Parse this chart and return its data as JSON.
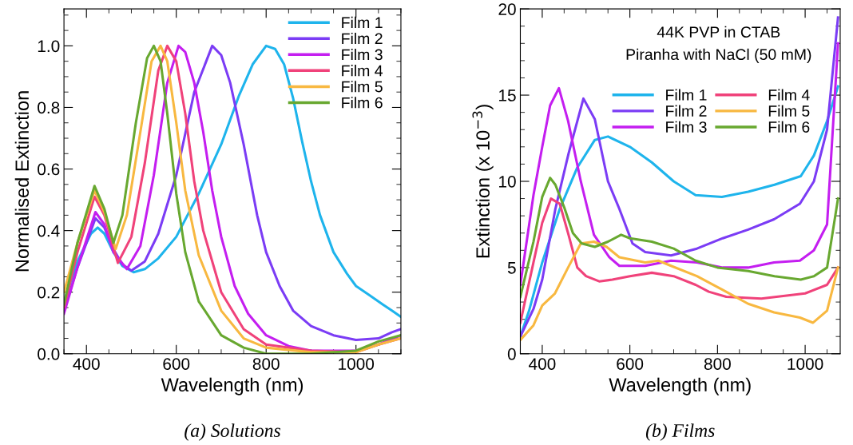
{
  "chart_data": [
    {
      "type": "line",
      "subtitle": "(a) Solutions",
      "xlabel": "Wavelength (nm)",
      "ylabel": "Normalised Extinction",
      "xlim": [
        350,
        1100
      ],
      "xticks": [
        400,
        600,
        800,
        1000
      ],
      "ylim": [
        0,
        1.12
      ],
      "yticks": [
        {
          "value": 0,
          "label": "0.0"
        },
        0.2,
        0.4,
        0.6,
        0.8,
        {
          "value": 1,
          "label": "1.0"
        }
      ],
      "grid": false,
      "legend": "top right",
      "marker": "none",
      "line_style": "solid",
      "series": [
        {
          "name": "Film 1",
          "color": "#1eb4ec",
          "x": [
            350,
            380,
            410,
            425,
            440,
            460,
            480,
            505,
            530,
            560,
            600,
            650,
            700,
            740,
            770,
            800,
            820,
            840,
            860,
            880,
            900,
            920,
            950,
            980,
            1000,
            1030,
            1060,
            1080,
            1100
          ],
          "values": [
            0.17,
            0.3,
            0.39,
            0.41,
            0.39,
            0.33,
            0.285,
            0.265,
            0.275,
            0.31,
            0.38,
            0.52,
            0.68,
            0.84,
            0.94,
            1.0,
            0.99,
            0.94,
            0.83,
            0.69,
            0.56,
            0.45,
            0.33,
            0.26,
            0.22,
            0.19,
            0.16,
            0.14,
            0.12
          ]
        },
        {
          "name": "Film 2",
          "color": "#7b3cf5",
          "x": [
            350,
            380,
            420,
            440,
            460,
            480,
            500,
            530,
            560,
            600,
            640,
            680,
            700,
            720,
            750,
            780,
            800,
            830,
            860,
            900,
            950,
            1000,
            1050,
            1080,
            1100
          ],
          "values": [
            0.14,
            0.28,
            0.44,
            0.41,
            0.34,
            0.29,
            0.27,
            0.3,
            0.39,
            0.58,
            0.85,
            1.0,
            0.97,
            0.88,
            0.68,
            0.45,
            0.33,
            0.22,
            0.14,
            0.09,
            0.06,
            0.045,
            0.05,
            0.07,
            0.08
          ]
        },
        {
          "name": "Film 3",
          "color": "#c41ef0",
          "x": [
            350,
            380,
            420,
            440,
            460,
            490,
            520,
            550,
            580,
            605,
            620,
            640,
            660,
            680,
            700,
            730,
            760,
            800,
            850,
            900,
            950,
            1000,
            1050,
            1100
          ],
          "values": [
            0.13,
            0.28,
            0.46,
            0.42,
            0.33,
            0.275,
            0.35,
            0.58,
            0.88,
            1.0,
            0.98,
            0.88,
            0.72,
            0.53,
            0.38,
            0.22,
            0.13,
            0.06,
            0.025,
            0.01,
            0.01,
            0.01,
            0.03,
            0.06
          ]
        },
        {
          "name": "Film 4",
          "color": "#f0427a",
          "x": [
            350,
            380,
            418,
            440,
            470,
            500,
            530,
            560,
            580,
            600,
            620,
            640,
            660,
            700,
            750,
            800,
            900,
            1000,
            1050,
            1100
          ],
          "values": [
            0.15,
            0.33,
            0.51,
            0.45,
            0.295,
            0.38,
            0.62,
            0.92,
            1.0,
            0.95,
            0.78,
            0.56,
            0.4,
            0.2,
            0.08,
            0.03,
            0.01,
            0.005,
            0.03,
            0.05
          ]
        },
        {
          "name": "Film 5",
          "color": "#f8b840",
          "x": [
            350,
            380,
            418,
            440,
            465,
            490,
            520,
            545,
            565,
            580,
            600,
            620,
            650,
            700,
            750,
            800,
            900,
            1000,
            1050,
            1100
          ],
          "values": [
            0.2,
            0.36,
            0.53,
            0.46,
            0.34,
            0.45,
            0.72,
            0.95,
            1.0,
            0.95,
            0.75,
            0.53,
            0.32,
            0.14,
            0.05,
            0.02,
            0.005,
            0.005,
            0.03,
            0.05
          ]
        },
        {
          "name": "Film 6",
          "color": "#68a830",
          "x": [
            350,
            380,
            418,
            440,
            460,
            480,
            510,
            535,
            550,
            565,
            580,
            600,
            620,
            650,
            700,
            750,
            800,
            900,
            1000,
            1050,
            1100
          ],
          "values": [
            0.16,
            0.36,
            0.545,
            0.47,
            0.36,
            0.45,
            0.75,
            0.96,
            1.0,
            0.95,
            0.78,
            0.52,
            0.33,
            0.17,
            0.06,
            0.02,
            0.0,
            0.0,
            0.01,
            0.04,
            0.06
          ]
        }
      ]
    },
    {
      "type": "line",
      "subtitle": "(b) Films",
      "xlabel": "Wavelength (nm)",
      "ylabel": "Extinction (x 10$^{−3}$)",
      "xlim": [
        350,
        1080
      ],
      "xticks": [
        400,
        600,
        800,
        1000
      ],
      "ylim": [
        0,
        20
      ],
      "yticks": [
        0,
        5,
        10,
        15,
        20
      ],
      "grid": false,
      "legend": "top right",
      "marker": "none",
      "line_style": "solid",
      "annotations": [
        "44K PVP in CTAB",
        "Piranha with NaCl (50 mM)"
      ],
      "series": [
        {
          "name": "Film 1",
          "color": "#1eb4ec",
          "x": [
            350,
            370,
            400,
            440,
            480,
            520,
            550,
            600,
            650,
            700,
            750,
            810,
            870,
            930,
            990,
            1020,
            1050,
            1075
          ],
          "values": [
            1.0,
            2.5,
            5.3,
            8.4,
            10.8,
            12.4,
            12.6,
            12.0,
            11.1,
            10.0,
            9.2,
            9.1,
            9.4,
            9.8,
            10.3,
            11.5,
            13.5,
            15.5
          ]
        },
        {
          "name": "Film 2",
          "color": "#7b3cf5",
          "x": [
            350,
            380,
            400,
            430,
            460,
            494,
            520,
            550,
            576,
            606,
            635,
            694,
            753,
            812,
            870,
            929,
            988,
            1020,
            1050,
            1075
          ],
          "values": [
            1.0,
            2.6,
            4.3,
            8.4,
            11.6,
            14.8,
            13.6,
            10.0,
            8.4,
            6.4,
            5.9,
            5.7,
            6.1,
            6.7,
            7.2,
            7.8,
            8.7,
            10.0,
            13.0,
            19.5
          ]
        },
        {
          "name": "Film 3",
          "color": "#c41ef0",
          "x": [
            350,
            380,
            400,
            418,
            438,
            459,
            488,
            518,
            553,
            576,
            635,
            694,
            753,
            812,
            870,
            929,
            988,
            1020,
            1050,
            1075
          ],
          "values": [
            4.0,
            9.2,
            12.0,
            14.4,
            15.4,
            13.5,
            10.0,
            6.9,
            5.6,
            5.1,
            5.1,
            5.4,
            5.3,
            5.0,
            5.0,
            5.3,
            5.4,
            6.0,
            7.5,
            18.0
          ]
        },
        {
          "name": "Film 4",
          "color": "#f0427a",
          "x": [
            350,
            380,
            400,
            420,
            440,
            460,
            480,
            500,
            530,
            560,
            600,
            650,
            700,
            750,
            780,
            820,
            900,
            1000,
            1050,
            1075
          ],
          "values": [
            1.8,
            5.3,
            7.6,
            9.0,
            8.7,
            6.9,
            5.0,
            4.5,
            4.2,
            4.3,
            4.5,
            4.7,
            4.5,
            4.0,
            3.6,
            3.3,
            3.2,
            3.5,
            4.0,
            5.0
          ]
        },
        {
          "name": "Film 5",
          "color": "#f8b840",
          "x": [
            350,
            380,
            400,
            429,
            459,
            488,
            518,
            547,
            576,
            635,
            665,
            694,
            753,
            812,
            870,
            929,
            988,
            1018,
            1050,
            1075
          ],
          "values": [
            0.8,
            1.65,
            2.8,
            3.5,
            5.0,
            6.4,
            6.5,
            6.2,
            5.6,
            5.3,
            5.4,
            5.1,
            4.5,
            3.7,
            2.9,
            2.4,
            2.1,
            1.8,
            2.5,
            5.0
          ]
        },
        {
          "name": "Film 6",
          "color": "#68a830",
          "x": [
            350,
            380,
            400,
            418,
            430,
            450,
            470,
            490,
            520,
            550,
            580,
            600,
            650,
            700,
            750,
            800,
            870,
            930,
            990,
            1020,
            1050,
            1075
          ],
          "values": [
            3.3,
            6.5,
            9.1,
            10.2,
            9.8,
            8.5,
            7.0,
            6.4,
            6.2,
            6.5,
            6.9,
            6.7,
            6.5,
            6.1,
            5.4,
            5.0,
            4.8,
            4.5,
            4.3,
            4.5,
            5.0,
            9.0
          ]
        }
      ]
    }
  ]
}
